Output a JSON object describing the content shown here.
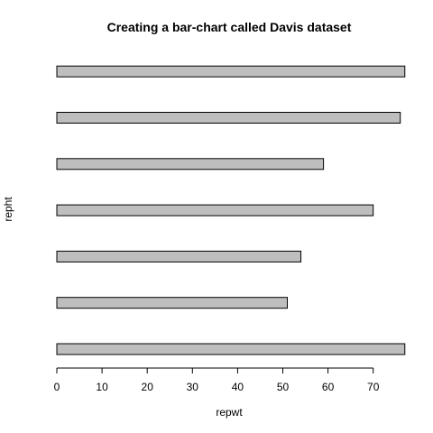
{
  "chart_data": {
    "type": "bar",
    "orientation": "horizontal",
    "title": "Creating a bar-chart called Davis dataset",
    "xlabel": "repwt",
    "ylabel": "repht",
    "values": [
      77,
      51,
      54,
      70,
      59,
      76,
      77
    ],
    "xlim": [
      0,
      80
    ],
    "xticks": [
      0,
      10,
      20,
      30,
      40,
      50,
      60,
      70
    ],
    "grid": false,
    "legend": "none",
    "bar_color": "#bebebe"
  }
}
